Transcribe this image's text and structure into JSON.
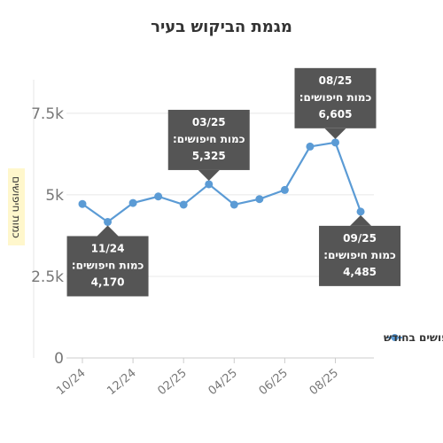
{
  "chart_data": {
    "type": "line",
    "title": "מגמת הביקוש בעיר",
    "ylabel": "כמות חיפושים",
    "xlabel": "",
    "categories": [
      "10/24",
      "11/24",
      "12/24",
      "01/25",
      "02/25",
      "03/25",
      "04/25",
      "05/25",
      "06/25",
      "07/25",
      "08/25",
      "09/25"
    ],
    "x_tick_labels": [
      "10/24",
      "12/24",
      "02/25",
      "04/25",
      "06/25",
      "08/25"
    ],
    "y_ticks": [
      0,
      2500,
      5000,
      7500
    ],
    "y_tick_labels": [
      "0",
      "2.5k",
      "5k",
      "7.5k"
    ],
    "ylim": [
      0,
      8800
    ],
    "grid": true,
    "series": [
      {
        "name": "חיפושים בחודש",
        "color": "#5b9bd5",
        "values": [
          4720,
          4170,
          4750,
          4950,
          4700,
          5325,
          4700,
          4870,
          5150,
          6480,
          6605,
          4485
        ]
      }
    ],
    "legend": {
      "position": "bottom-right",
      "label": "חיפושים בחודש"
    },
    "tooltips": [
      {
        "index": 1,
        "date": "11/24",
        "label": "כמות חיפושים:",
        "value": "4,170",
        "placement": "below"
      },
      {
        "index": 5,
        "date": "03/25",
        "label": "כמות חיפושים:",
        "value": "5,325",
        "placement": "above"
      },
      {
        "index": 10,
        "date": "08/25",
        "label": "כמות חיפושים:",
        "value": "6,605",
        "placement": "above"
      },
      {
        "index": 11,
        "date": "09/25",
        "label": "כמות חיפושים:",
        "value": "4,485",
        "placement": "below"
      }
    ]
  }
}
